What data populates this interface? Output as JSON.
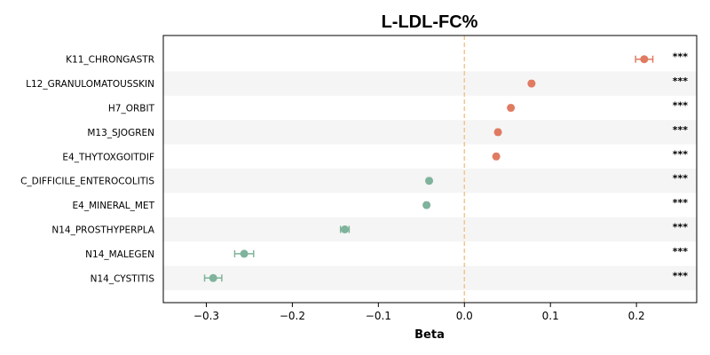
{
  "chart_data": {
    "type": "scatter",
    "title": "L-LDL-FC%",
    "xlabel": "Beta",
    "ylabel": "",
    "xlim": [
      -0.35,
      0.27
    ],
    "xticks": [
      -0.3,
      -0.2,
      -0.1,
      0.0,
      0.1,
      0.2
    ],
    "xtick_labels": [
      "−0.3",
      "−0.2",
      "−0.1",
      "0.0",
      "0.1",
      "0.2"
    ],
    "reference_line": 0,
    "categories": [
      "K11_CHRONGASTR",
      "L12_GRANULOMATOUSSKIN",
      "H7_ORBIT",
      "M13_SJOGREN",
      "E4_THYTOXGOITDIF",
      "C_DIFFICILE_ENTEROCOLITIS",
      "E4_MINERAL_MET",
      "N14_PROSTHYPERPLA",
      "N14_MALEGEN",
      "N14_CYSTITIS"
    ],
    "values": [
      0.209,
      0.078,
      0.054,
      0.039,
      0.037,
      -0.041,
      -0.044,
      -0.139,
      -0.256,
      -0.292
    ],
    "ci_low": [
      0.199,
      0.076,
      0.052,
      0.037,
      0.035,
      -0.043,
      -0.046,
      -0.144,
      -0.267,
      -0.302
    ],
    "ci_high": [
      0.219,
      0.08,
      0.056,
      0.041,
      0.039,
      -0.039,
      -0.042,
      -0.134,
      -0.245,
      -0.282
    ],
    "significance": [
      "***",
      "***",
      "***",
      "***",
      "***",
      "***",
      "***",
      "***",
      "***",
      "***"
    ],
    "colors": {
      "positive": "#e07b62",
      "negative": "#7fb39b",
      "reference": "#f2c68c",
      "stripe": "#f5f5f5"
    },
    "grid": false
  }
}
